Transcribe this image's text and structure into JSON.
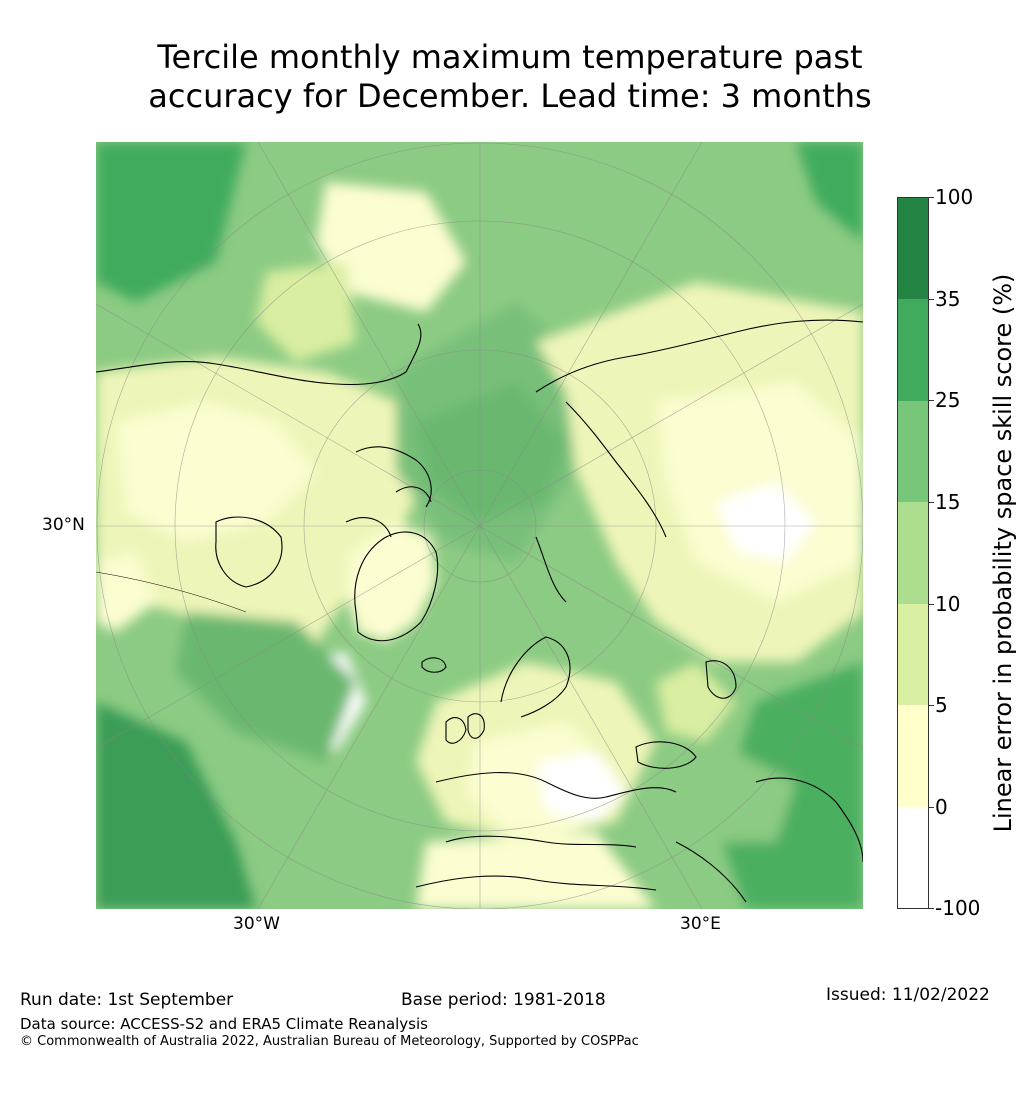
{
  "title": {
    "line1": "Tercile monthly maximum temperature past",
    "line2": "accuracy for December. Lead time: 3 months"
  },
  "map": {
    "projection": "north polar stereographic",
    "lat_label": "30°N",
    "lon_labels": [
      "30°W",
      "30°E"
    ],
    "colors": {
      "ocean_mid": "#8ccb83",
      "arctic": "#78c07a",
      "land_light": "#eef5b8",
      "pale": "#fcfdd0",
      "white": "#ffffff",
      "dark": "#2f8f4c",
      "coast": "#000000",
      "grid": "#888888"
    }
  },
  "colorbar": {
    "label": "Linear error in probability space skill score (%)",
    "ticks": [
      "100",
      "35",
      "25",
      "15",
      "10",
      "5",
      "0",
      "-100"
    ],
    "segments": [
      "#238443",
      "#41ab5d",
      "#78c679",
      "#addd8e",
      "#d9f0a3",
      "#ffffcc",
      "#ffffff"
    ]
  },
  "footer": {
    "run_date": "Run date: 1st September",
    "base_period": "Base period: 1981-2018",
    "issued": "Issued: 11/02/2022",
    "data_source": "Data source: ACCESS-S2 and ERA5 Climate Reanalysis",
    "copyright": "© Commonwealth of Australia 2022, Australian Bureau of Meteorology, Supported by COSPPac"
  }
}
